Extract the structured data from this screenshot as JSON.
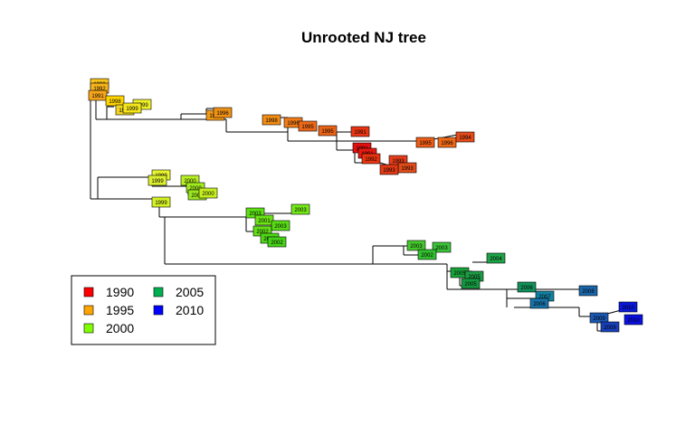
{
  "title": "Unrooted NJ tree",
  "legend": {
    "entries": [
      {
        "label": "1990",
        "color": "#FF0000"
      },
      {
        "label": "1995",
        "color": "#FFA500"
      },
      {
        "label": "2000",
        "color": "#80FF00"
      },
      {
        "label": "2005",
        "color": "#00B050"
      },
      {
        "label": "2010",
        "color": "#0000FF"
      }
    ]
  },
  "tips": [
    {
      "year": "1993",
      "color": "#F7C31A"
    },
    {
      "year": "1992",
      "color": "#F7B31A"
    },
    {
      "year": "1991",
      "color": "#F6A51C"
    },
    {
      "year": "1998",
      "color": "#FFD500"
    },
    {
      "year": "1999",
      "color": "#EEF02A"
    },
    {
      "year": "1998",
      "color": "#F1D523"
    },
    {
      "year": "1999",
      "color": "#F4E51D"
    },
    {
      "year": "1996",
      "color": "#F29A17"
    },
    {
      "year": "1996",
      "color": "#F09117"
    },
    {
      "year": "1998",
      "color": "#F28C14"
    },
    {
      "year": "1996",
      "color": "#F07B17"
    },
    {
      "year": "1995",
      "color": "#EE6A19"
    },
    {
      "year": "1995",
      "color": "#EA6316"
    },
    {
      "year": "1991",
      "color": "#E93513"
    },
    {
      "year": "1995",
      "color": "#EE5D16"
    },
    {
      "year": "1996",
      "color": "#EE6A19"
    },
    {
      "year": "1994",
      "color": "#E24C1A"
    },
    {
      "year": "1991",
      "color": "#E50F10"
    },
    {
      "year": "1991",
      "color": "#E51A10"
    },
    {
      "year": "1992",
      "color": "#E83510"
    },
    {
      "year": "1993",
      "color": "#E83D1A"
    },
    {
      "year": "1993",
      "color": "#E24C1A"
    },
    {
      "year": "1993",
      "color": "#E03A15"
    },
    {
      "year": "1999",
      "color": "#E8F530"
    },
    {
      "year": "1999",
      "color": "#DCF030"
    },
    {
      "year": "2000",
      "color": "#B7F022"
    },
    {
      "year": "2000",
      "color": "#A2EB1F"
    },
    {
      "year": "2000",
      "color": "#9AE61E"
    },
    {
      "year": "2000",
      "color": "#C4EE21"
    },
    {
      "year": "1999",
      "color": "#D4F026"
    },
    {
      "year": "2003",
      "color": "#5DE015"
    },
    {
      "year": "2003",
      "color": "#72E817"
    },
    {
      "year": "2001",
      "color": "#6CE217"
    },
    {
      "year": "2003",
      "color": "#58DA16"
    },
    {
      "year": "2002",
      "color": "#62DD17"
    },
    {
      "year": "2002",
      "color": "#4FD617"
    },
    {
      "year": "2002",
      "color": "#46D218"
    },
    {
      "year": "2003",
      "color": "#46C72E"
    },
    {
      "year": "2003",
      "color": "#3BC238"
    },
    {
      "year": "2002",
      "color": "#31BF2F"
    },
    {
      "year": "2005",
      "color": "#18A23A"
    },
    {
      "year": "2005",
      "color": "#1E9B45"
    },
    {
      "year": "2004",
      "color": "#20A348"
    },
    {
      "year": "2005",
      "color": "#14973F"
    },
    {
      "year": "2006",
      "color": "#138F5A"
    },
    {
      "year": "2007",
      "color": "#1380A0"
    },
    {
      "year": "2006",
      "color": "#1872A6"
    },
    {
      "year": "2008",
      "color": "#1A65A8"
    },
    {
      "year": "2009",
      "color": "#1C58B0"
    },
    {
      "year": "2010",
      "color": "#0A18D8"
    },
    {
      "year": "2009",
      "color": "#1740B8"
    },
    {
      "year": "2010",
      "color": "#0A10E0"
    }
  ]
}
